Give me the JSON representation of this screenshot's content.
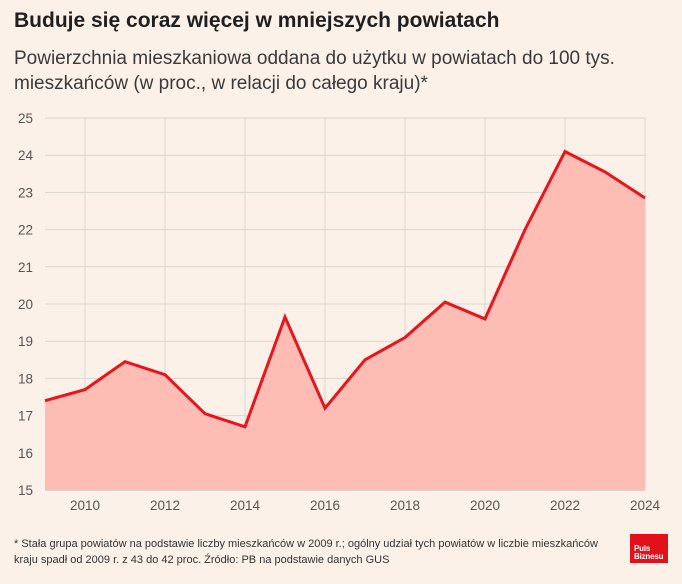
{
  "header": {
    "title": "Buduje się coraz więcej w mniejszych powiatach",
    "subtitle": "Powierzchnia mieszkaniowa oddana do użytku w powiatach do 100 tys. mieszkańców (w proc., w relacji do całego kraju)*"
  },
  "footnote": "* Stała grupa powiatów na podstawie liczby mieszkańców w 2009 r.; ogólny udział tych powiatów w liczbie mieszkańców kraju spadł od 2009 r. z 43 do 42 proc. Źródło: PB na podstawie danych GUS",
  "logo": {
    "line1": "Puls",
    "line2": "Biznesu"
  },
  "chart_data": {
    "type": "area",
    "title": "Buduje się coraz więcej w mniejszych powiatach",
    "subtitle": "Powierzchnia mieszkaniowa oddana do użytku w powiatach do 100 tys. mieszkańców (w proc., w relacji do całego kraju)*",
    "xlabel": "",
    "ylabel": "",
    "x": [
      2009,
      2010,
      2011,
      2012,
      2013,
      2014,
      2015,
      2016,
      2017,
      2018,
      2019,
      2020,
      2021,
      2022,
      2023,
      2024
    ],
    "series": [
      {
        "values": [
          17.4,
          17.7,
          18.45,
          18.1,
          17.05,
          16.7,
          19.65,
          17.2,
          18.5,
          19.1,
          20.05,
          19.6,
          22.0,
          24.1,
          23.55,
          22.85
        ]
      }
    ],
    "xlim": [
      2009,
      2024
    ],
    "ylim": [
      15,
      25
    ],
    "x_ticks": [
      2010,
      2012,
      2014,
      2016,
      2018,
      2020,
      2022,
      2024
    ],
    "y_ticks": [
      15,
      16,
      17,
      18,
      19,
      20,
      21,
      22,
      23,
      24,
      25
    ],
    "grid": true,
    "legend": "none",
    "colors": {
      "line": "#e8151d",
      "area": "#fdbdb4",
      "grid": "#dcd5cf",
      "background": "#fbf1e9"
    }
  }
}
